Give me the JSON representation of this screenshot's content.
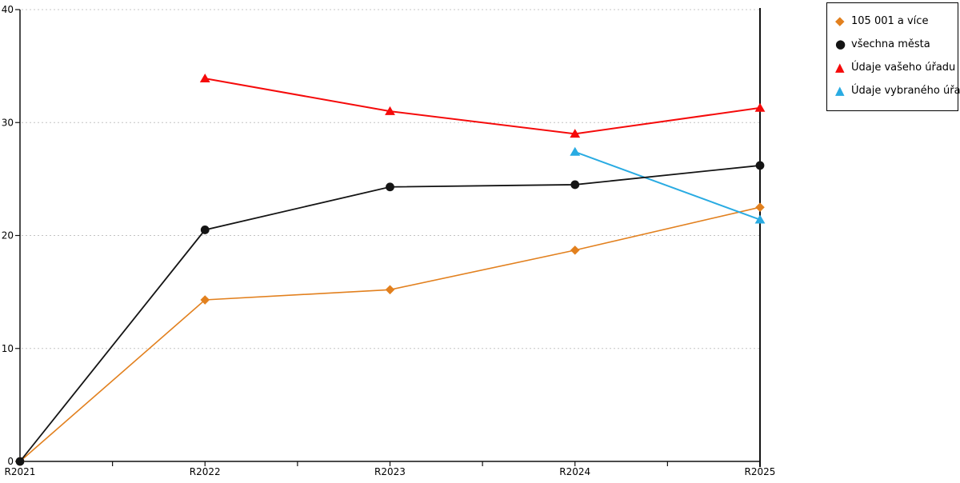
{
  "chart_data": {
    "type": "line",
    "title": "",
    "xlabel": "",
    "ylabel": "",
    "categories": [
      "R2021",
      "R2022",
      "R2023",
      "R2024",
      "R2025"
    ],
    "series": [
      {
        "name": "105 001 a více",
        "color": "#E2801E",
        "marker": "diamond",
        "line_width": 1.6,
        "values": [
          0,
          14.3,
          15.2,
          18.7,
          22.5
        ]
      },
      {
        "name": "všechna města",
        "color": "#141414",
        "marker": "circle",
        "line_width": 1.8,
        "values": [
          0,
          20.5,
          24.3,
          24.5,
          26.2
        ]
      },
      {
        "name": "Údaje vašeho úřadu",
        "color": "#F50A0A",
        "marker": "triangle",
        "line_width": 2.0,
        "values": [
          null,
          33.9,
          31.0,
          29.0,
          31.3
        ]
      },
      {
        "name": "Údaje vybraného úřadu",
        "color": "#29ABE2",
        "marker": "triangle",
        "line_width": 2.0,
        "values": [
          null,
          null,
          null,
          27.4,
          21.4
        ]
      }
    ],
    "ylim": [
      0,
      40
    ],
    "yticks": [
      0,
      10,
      20,
      30,
      40
    ],
    "grid": "horizontal-dashed",
    "grid_color": "#c4c4c4",
    "axis_color": "#111111",
    "legend_position": "top-right"
  }
}
